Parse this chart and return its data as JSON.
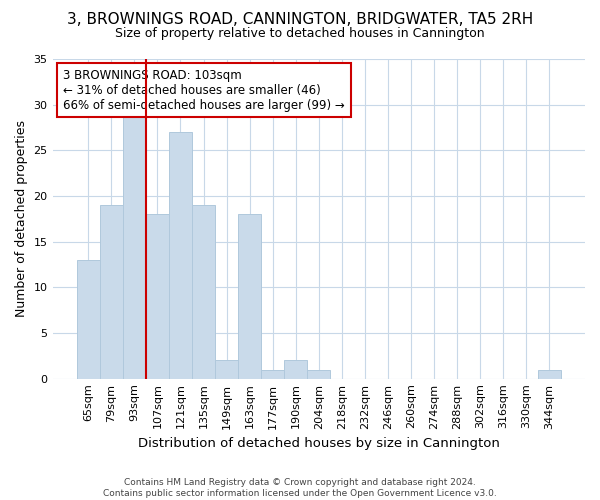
{
  "title": "3, BROWNINGS ROAD, CANNINGTON, BRIDGWATER, TA5 2RH",
  "subtitle": "Size of property relative to detached houses in Cannington",
  "xlabel": "Distribution of detached houses by size in Cannington",
  "ylabel": "Number of detached properties",
  "categories": [
    "65sqm",
    "79sqm",
    "93sqm",
    "107sqm",
    "121sqm",
    "135sqm",
    "149sqm",
    "163sqm",
    "177sqm",
    "190sqm",
    "204sqm",
    "218sqm",
    "232sqm",
    "246sqm",
    "260sqm",
    "274sqm",
    "288sqm",
    "302sqm",
    "316sqm",
    "330sqm",
    "344sqm"
  ],
  "values": [
    13,
    19,
    29,
    18,
    27,
    19,
    2,
    18,
    1,
    2,
    1,
    0,
    0,
    0,
    0,
    0,
    0,
    0,
    0,
    0,
    1
  ],
  "bar_color": "#c9daea",
  "bar_edgecolor": "#b0c8dc",
  "vline_color": "#cc0000",
  "vline_x_index": 3,
  "ylim": [
    0,
    35
  ],
  "yticks": [
    0,
    5,
    10,
    15,
    20,
    25,
    30,
    35
  ],
  "annotation_text": "3 BROWNINGS ROAD: 103sqm\n← 31% of detached houses are smaller (46)\n66% of semi-detached houses are larger (99) →",
  "footnote": "Contains HM Land Registry data © Crown copyright and database right 2024.\nContains public sector information licensed under the Open Government Licence v3.0.",
  "background_color": "#ffffff",
  "plot_background_color": "#ffffff",
  "grid_color": "#c8d8e8",
  "annotation_box_color": "#ffffff",
  "annotation_box_edgecolor": "#cc0000",
  "title_fontsize": 11,
  "subtitle_fontsize": 9,
  "ylabel_fontsize": 9,
  "xlabel_fontsize": 9.5,
  "tick_fontsize": 8,
  "annotation_fontsize": 8.5,
  "footnote_fontsize": 6.5
}
